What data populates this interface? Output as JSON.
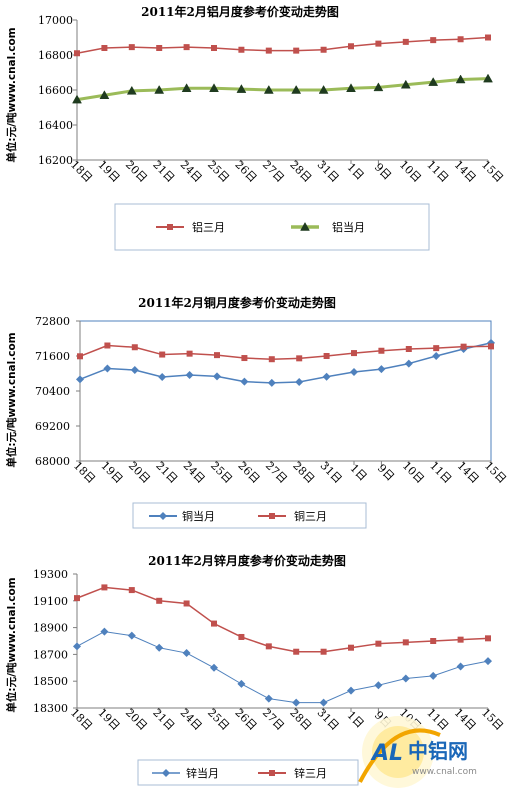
{
  "chart_data": [
    {
      "type": "line",
      "title": "2011年2月铝月度参考价变动走势图",
      "ylabel": "单位:元/吨www.cnal.com",
      "categories": [
        "18日",
        "19日",
        "20日",
        "21日",
        "24日",
        "25日",
        "26日",
        "27日",
        "28日",
        "31日",
        "1日",
        "9日",
        "10日",
        "11日",
        "14日",
        "15日"
      ],
      "ylim": [
        16200,
        17000
      ],
      "yticks": [
        16200,
        16400,
        16600,
        16800,
        17000
      ],
      "grid": false,
      "legend_position": "bottom",
      "series": [
        {
          "name": "铝三月",
          "color": "#c0504d",
          "marker": "square",
          "values": [
            16810,
            16840,
            16845,
            16840,
            16845,
            16840,
            16830,
            16825,
            16825,
            16830,
            16850,
            16865,
            16875,
            16885,
            16890,
            16900
          ]
        },
        {
          "name": "铝当月",
          "color": "#9bbb59",
          "marker": "triangle",
          "values": [
            16545,
            16570,
            16595,
            16600,
            16610,
            16610,
            16605,
            16600,
            16600,
            16600,
            16610,
            16615,
            16630,
            16645,
            16660,
            16665
          ]
        }
      ]
    },
    {
      "type": "line",
      "title": "2011年2月铜月度参考价变动走势图",
      "ylabel": "单位:元/吨www.cnal.com",
      "categories": [
        "18日",
        "19日",
        "20日",
        "21日",
        "24日",
        "25日",
        "26日",
        "27日",
        "28日",
        "31日",
        "1日",
        "9日",
        "10日",
        "11日",
        "14日",
        "15日"
      ],
      "ylim": [
        68000,
        72800
      ],
      "yticks": [
        68000,
        69200,
        70400,
        71600,
        72800
      ],
      "grid": false,
      "legend_position": "bottom",
      "series": [
        {
          "name": "铜当月",
          "color": "#4f81bd",
          "marker": "diamond",
          "values": [
            70800,
            71170,
            71120,
            70880,
            70950,
            70900,
            70720,
            70680,
            70710,
            70890,
            71050,
            71150,
            71340,
            71600,
            71840,
            72050
          ]
        },
        {
          "name": "铜三月",
          "color": "#c0504d",
          "marker": "square",
          "values": [
            71590,
            71960,
            71900,
            71650,
            71680,
            71630,
            71530,
            71490,
            71520,
            71600,
            71700,
            71780,
            71840,
            71870,
            71920,
            71930
          ]
        }
      ]
    },
    {
      "type": "line",
      "title": "2011年2月锌月度参考价变动走势图",
      "ylabel": "单位:元/吨www.cnal.com",
      "categories": [
        "18日",
        "19日",
        "20日",
        "21日",
        "24日",
        "25日",
        "26日",
        "27日",
        "28日",
        "31日",
        "1日",
        "9日",
        "10日",
        "11日",
        "14日",
        "15日"
      ],
      "ylim": [
        18300,
        19300
      ],
      "yticks": [
        18300,
        18500,
        18700,
        18900,
        19100,
        19300
      ],
      "grid": false,
      "legend_position": "bottom",
      "series": [
        {
          "name": "锌当月",
          "color": "#4f81bd",
          "marker": "diamond",
          "values": [
            18760,
            18870,
            18840,
            18750,
            18710,
            18600,
            18480,
            18370,
            18340,
            18340,
            18430,
            18470,
            18520,
            18540,
            18610,
            18650
          ]
        },
        {
          "name": "锌三月",
          "color": "#c0504d",
          "marker": "square",
          "values": [
            19120,
            19200,
            19180,
            19100,
            19080,
            18930,
            18830,
            18760,
            18720,
            18720,
            18750,
            18780,
            18790,
            18800,
            18810,
            18820
          ]
        }
      ]
    }
  ],
  "watermark": {
    "logo_text": "中铝网",
    "url_text": "www.cnal.com",
    "al_text": "AL"
  }
}
